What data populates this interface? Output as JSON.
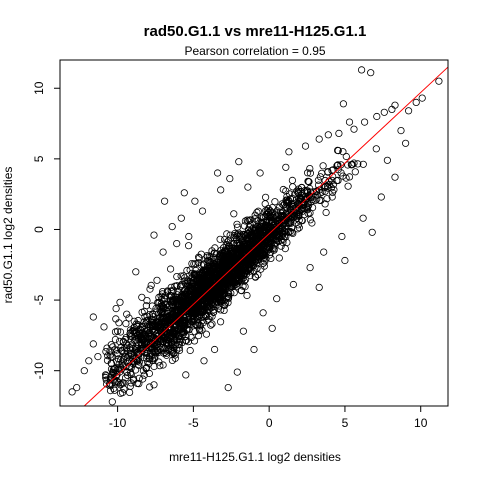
{
  "chart_data": {
    "type": "scatter",
    "title": "rad50.G1.1 vs mre11-H125.G1.1",
    "subtitle": "Pearson correlation =  0.95",
    "xlabel": "mre11-H125.G1.1 log2 densities",
    "ylabel": "rad50.G1.1 log2 densities",
    "xlim": [
      -13.8,
      11.8
    ],
    "ylim": [
      -12.5,
      12.0
    ],
    "x_ticks": [
      -10,
      -5,
      0,
      5,
      10
    ],
    "y_ticks": [
      -10,
      -5,
      0,
      5,
      10
    ],
    "x_tick_labels": [
      "-10",
      "-5",
      "0",
      "5",
      "10"
    ],
    "y_tick_labels": [
      "-10",
      "-5",
      "0",
      "5",
      "10"
    ],
    "grid": false,
    "legend": "none",
    "marker": "open-circle",
    "point_color": "#000000",
    "line_color": "#ff0000",
    "fit_line": {
      "slope": 1.0,
      "intercept": -0.3
    },
    "cloud": {
      "n_points": 2600,
      "x_mean": -3.5,
      "x_sd": 3.2,
      "slope": 0.95,
      "intercept": -0.3,
      "residual_sd": 1.1,
      "seed": 4721
    },
    "points": [
      [
        -13.0,
        -11.5
      ],
      [
        -12.7,
        -11.2
      ],
      [
        -9.8,
        -11.6
      ],
      [
        -8.7,
        -10.9
      ],
      [
        -7.9,
        -10.2
      ],
      [
        -2.7,
        -11.2
      ],
      [
        -10.4,
        -9.5
      ],
      [
        -9.1,
        -9.8
      ],
      [
        -11.3,
        -9.0
      ],
      [
        -10.7,
        -8.4
      ],
      [
        -9.5,
        -7.8
      ],
      [
        -10.0,
        -7.2
      ],
      [
        -8.9,
        -6.5
      ],
      [
        -9.4,
        -6.0
      ],
      [
        -8.1,
        -5.4
      ],
      [
        -8.4,
        -4.8
      ],
      [
        -7.4,
        -3.6
      ],
      [
        -6.5,
        -2.8
      ],
      [
        -7.0,
        -1.6
      ],
      [
        -6.1,
        -1.0
      ],
      [
        -5.3,
        -0.5
      ],
      [
        -6.4,
        0.2
      ],
      [
        -5.8,
        0.8
      ],
      [
        -4.4,
        1.3
      ],
      [
        -5.6,
        2.6
      ],
      [
        -4.9,
        2.0
      ],
      [
        -3.2,
        2.8
      ],
      [
        -2.6,
        3.6
      ],
      [
        -1.4,
        3.0
      ],
      [
        -0.6,
        4.0
      ],
      [
        1.1,
        4.4
      ],
      [
        1.3,
        5.5
      ],
      [
        2.4,
        5.9
      ],
      [
        3.3,
        6.4
      ],
      [
        4.6,
        6.8
      ],
      [
        5.6,
        7.1
      ],
      [
        6.3,
        7.6
      ],
      [
        7.1,
        8.0
      ],
      [
        7.6,
        8.3
      ],
      [
        8.1,
        8.5
      ],
      [
        8.3,
        8.8
      ],
      [
        9.2,
        8.4
      ],
      [
        9.7,
        9.0
      ],
      [
        10.1,
        9.3
      ],
      [
        11.2,
        10.5
      ],
      [
        6.1,
        11.3
      ],
      [
        6.7,
        11.1
      ],
      [
        4.9,
        8.9
      ],
      [
        5.3,
        7.6
      ],
      [
        3.9,
        6.7
      ],
      [
        -10.5,
        -8.6
      ],
      [
        -11.9,
        -9.3
      ],
      [
        -9.0,
        -9.5
      ],
      [
        -8.3,
        -10.0
      ],
      [
        -8.6,
        -9.1
      ],
      [
        -7.0,
        -9.6
      ],
      [
        -6.3,
        -8.8
      ],
      [
        -4.3,
        -9.3
      ],
      [
        -3.6,
        -8.5
      ],
      [
        -1.7,
        -7.2
      ],
      [
        -0.4,
        -5.9
      ],
      [
        0.5,
        -4.9
      ],
      [
        1.6,
        -3.9
      ],
      [
        2.7,
        -2.7
      ],
      [
        3.6,
        -1.6
      ],
      [
        4.8,
        -0.5
      ],
      [
        6.2,
        0.8
      ],
      [
        7.4,
        2.3
      ],
      [
        8.3,
        3.7
      ],
      [
        7.8,
        4.9
      ],
      [
        -12.2,
        -10.0
      ],
      [
        -11.6,
        -8.1
      ],
      [
        -10.9,
        -6.9
      ],
      [
        -11.6,
        -6.2
      ],
      [
        -10.1,
        -5.6
      ],
      [
        -2.1,
        -10.1
      ],
      [
        -5.5,
        -10.3
      ],
      [
        -7.6,
        -11.0
      ],
      [
        -1.0,
        -8.5
      ],
      [
        0.2,
        -7.0
      ],
      [
        3.3,
        -4.1
      ],
      [
        5.0,
        -2.2
      ],
      [
        6.8,
        -0.2
      ],
      [
        9.0,
        6.1
      ],
      [
        8.7,
        7.0
      ],
      [
        -3.4,
        4.0
      ],
      [
        -2.0,
        4.8
      ],
      [
        -6.9,
        2.0
      ],
      [
        -7.6,
        -0.4
      ],
      [
        -8.8,
        -3.0
      ]
    ]
  }
}
